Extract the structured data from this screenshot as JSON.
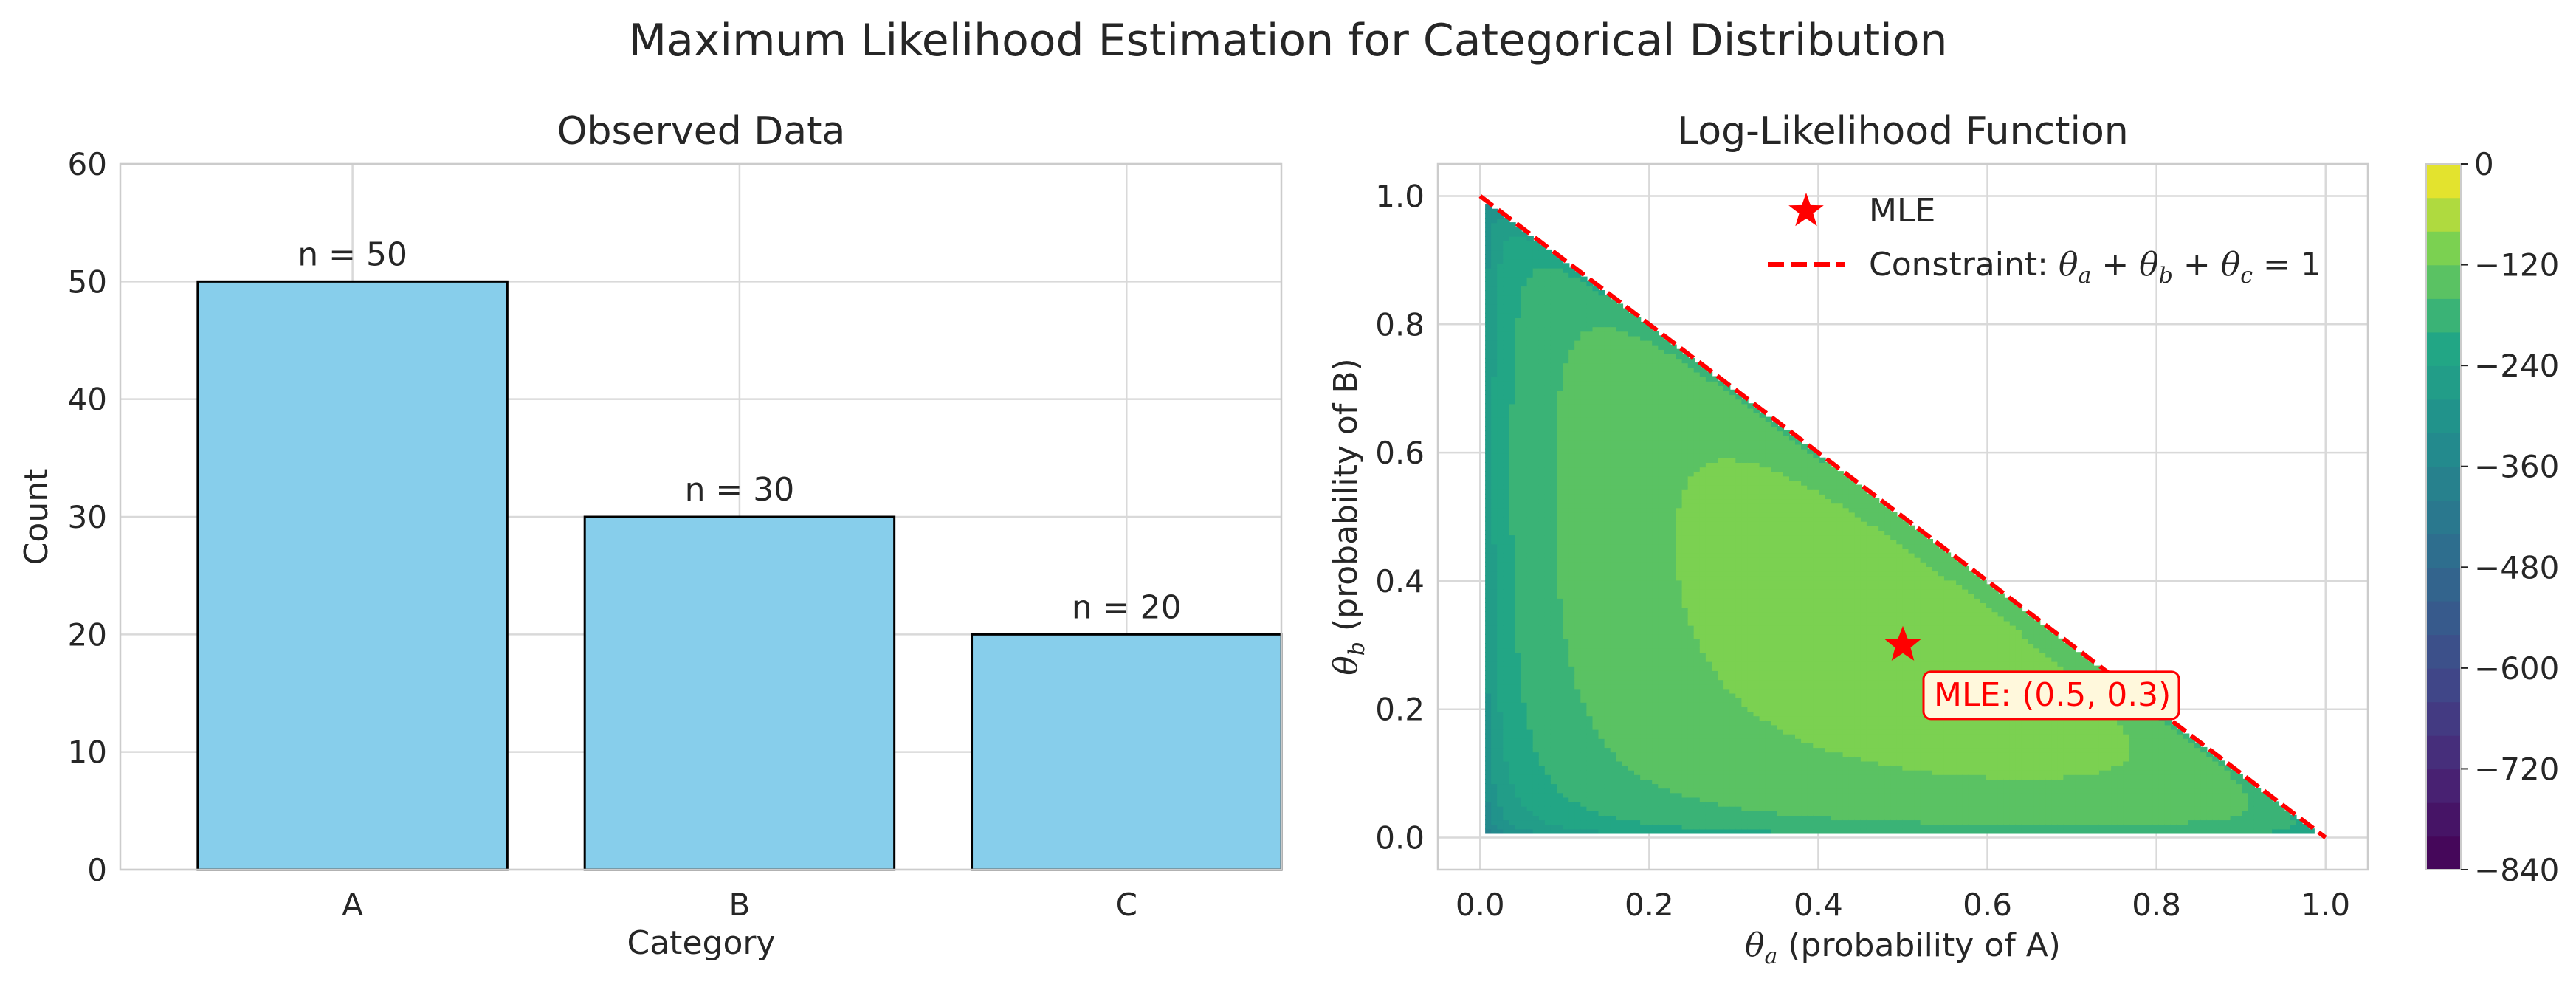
{
  "suptitle": "Maximum Likelihood Estimation for Categorical Distribution",
  "chart_data": [
    {
      "type": "bar",
      "title": "Observed Data",
      "xlabel": "Category",
      "ylabel": "Count",
      "categories": [
        "A",
        "B",
        "C"
      ],
      "values": [
        50,
        30,
        20
      ],
      "data_labels": [
        "n = 50",
        "n = 30",
        "n = 20"
      ],
      "ylim": [
        0,
        60
      ],
      "yticks": [
        0,
        10,
        20,
        30,
        40,
        50,
        60
      ],
      "bar_color": "#87ceeb",
      "edge_color": "#000000",
      "grid": true
    },
    {
      "type": "heatmap",
      "subtype": "filled-contour",
      "title": "Log-Likelihood Function",
      "xlabel_var": "θ",
      "xlabel_sub": "a",
      "xlabel_rest": " (probability of A)",
      "ylabel_var": "θ",
      "ylabel_sub": "b",
      "ylabel_rest": " (probability of B)",
      "xlim": [
        -0.05,
        1.05
      ],
      "ylim": [
        -0.05,
        1.05
      ],
      "xticks": [
        "0.0",
        "0.2",
        "0.4",
        "0.6",
        "0.8",
        "1.0"
      ],
      "yticks": [
        "0.0",
        "0.2",
        "0.4",
        "0.6",
        "0.8",
        "1.0"
      ],
      "counts": [
        50,
        30,
        20
      ],
      "colormap": "viridis",
      "colorbar_range": [
        -840,
        0
      ],
      "colorbar_ticks": [
        "0",
        "−120",
        "−240",
        "−360",
        "−480",
        "−600",
        "−720",
        "−840"
      ],
      "mle": {
        "x": 0.5,
        "y": 0.3,
        "label": "MLE",
        "annotation": "MLE: (0.5, 0.3)",
        "color": "#ff0000"
      },
      "constraint": {
        "from": [
          0,
          1
        ],
        "to": [
          1,
          0
        ],
        "label_prefix": "Constraint: ",
        "color": "#ff0000"
      },
      "legend_position": "upper-right",
      "grid": true
    }
  ]
}
